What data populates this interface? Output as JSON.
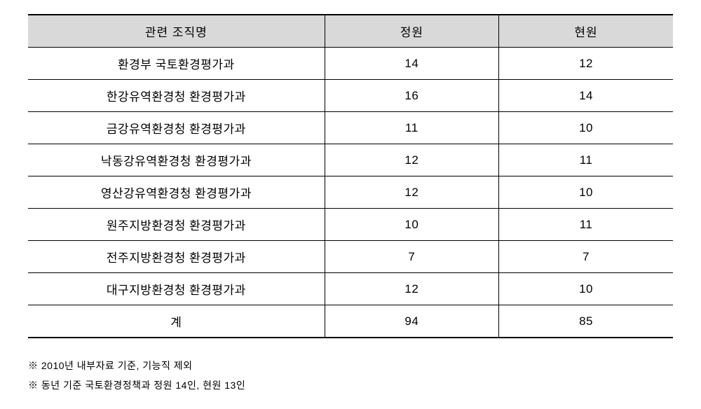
{
  "table": {
    "columns": [
      "관련 조직명",
      "정원",
      "현원"
    ],
    "column_widths": [
      "46%",
      "27%",
      "27%"
    ],
    "header_bg": "#d9d9d9",
    "border_color": "#000000",
    "background_color": "#ffffff",
    "font_size": 17,
    "rows": [
      {
        "org": "환경부 국토환경평가과",
        "quota": "14",
        "current": "12"
      },
      {
        "org": "한강유역환경청 환경평가과",
        "quota": "16",
        "current": "14"
      },
      {
        "org": "금강유역환경청 환경평가과",
        "quota": "11",
        "current": "10"
      },
      {
        "org": "낙동강유역환경청 환경평가과",
        "quota": "12",
        "current": "11"
      },
      {
        "org": "영산강유역환경청 환경평가과",
        "quota": "12",
        "current": "10"
      },
      {
        "org": "원주지방환경청 환경평가과",
        "quota": "10",
        "current": "11"
      },
      {
        "org": "전주지방환경청 환경평가과",
        "quota": "7",
        "current": "7"
      },
      {
        "org": "대구지방환경청 환경평가과",
        "quota": "12",
        "current": "10"
      },
      {
        "org": "계",
        "quota": "94",
        "current": "85"
      }
    ]
  },
  "footnotes": [
    "※ 2010년 내부자료 기준, 기능직 제외",
    "※ 동년 기준 국토환경정책과 정원 14인, 현원 13인"
  ]
}
